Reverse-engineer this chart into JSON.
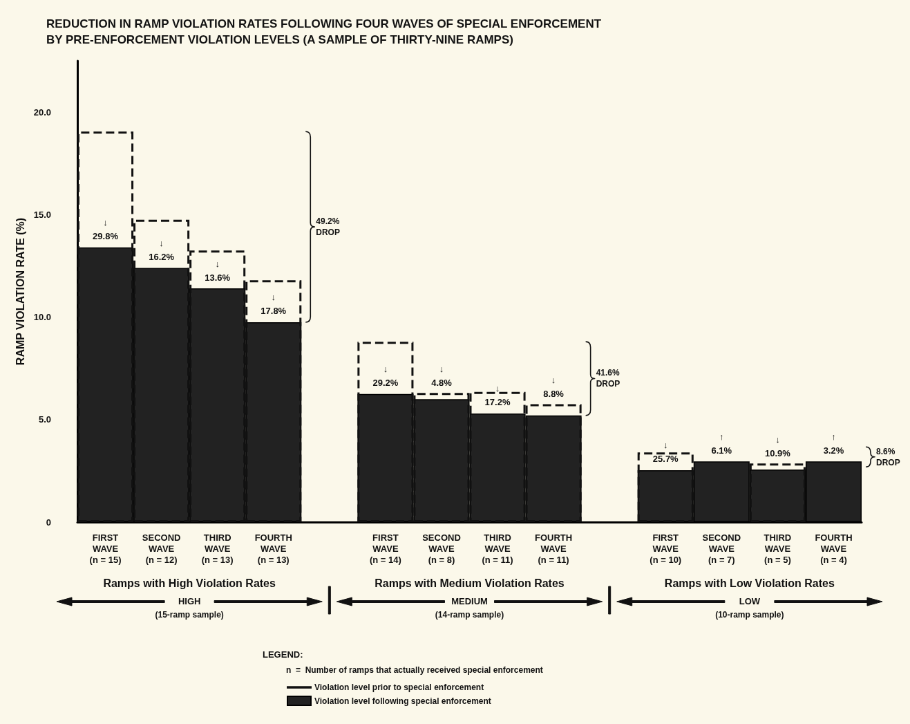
{
  "chart_data": {
    "type": "bar",
    "title": "REDUCTION IN RAMP VIOLATION RATES FOLLOWING FOUR WAVES OF SPECIAL ENFORCEMENT\nBY PRE-ENFORCEMENT VIOLATION LEVELS (A SAMPLE OF THIRTY-NINE RAMPS)",
    "ylabel": "RAMP VIOLATION RATE (%)",
    "legend_title": "LEGEND:",
    "categories": [
      "FIRST\nWAVE\n(n = 15)",
      "SECOND\nWAVE\n(n = 12)",
      "THIRD\nWAVE\n(n = 13)",
      "FOURTH\nWAVE\n(n = 13)",
      null,
      "FIRST\nWAVE\n(n = 14)",
      "SECOND\nWAVE\n(n = 8)",
      "THIRD\nWAVE\n(n = 11)",
      "FOURTH\nWAVE\n(n = 11)",
      null,
      "FIRST\nWAVE\n(n = 10)",
      "SECOND\nWAVE\n(n = 7)",
      "THIRD\nWAVE\n(n = 5)",
      "FOURTH\nWAVE\n(n = 4)"
    ],
    "series": [
      {
        "name": "Violation level following special enforcement",
        "color": "#222222",
        "values": [
          13.4,
          12.4,
          11.4,
          9.75,
          null,
          6.25,
          6.0,
          5.3,
          5.2,
          null,
          2.53,
          2.96,
          2.56,
          2.96
        ]
      },
      {
        "name": "Violation level prior to special enforcement",
        "color": "#111111",
        "line_style": "dashed",
        "values": [
          19.05,
          14.75,
          13.25,
          11.8,
          null,
          8.8,
          6.3,
          6.35,
          5.75,
          null,
          3.4,
          null,
          2.86,
          null
        ]
      }
    ],
    "ylim": [
      0,
      22.5
    ],
    "yticks": [
      0,
      {
        "value": 5,
        "label": "5.0"
      },
      {
        "value": 10,
        "label": "10.0"
      },
      {
        "value": 15,
        "label": "15.0"
      },
      {
        "value": 20,
        "label": "20.0"
      }
    ],
    "grid": false,
    "legend": "bottom",
    "annotations": [
      {
        "text": "↓\n29.8%",
        "x": "FIRST\nWAVE\n(n = 15)",
        "y": 13.4
      },
      {
        "text": "↓\n16.2%",
        "x": "SECOND\nWAVE\n(n = 12)",
        "y": 12.4
      },
      {
        "text": "↓\n13.6%",
        "x": "THIRD\nWAVE\n(n = 13)",
        "y": 11.4
      },
      {
        "text": "↓\n17.8%",
        "x": "FOURTH\nWAVE\n(n = 13)",
        "y": 9.75
      },
      {
        "text": "↓\n29.2%",
        "x": "FIRST\nWAVE\n(n = 14)",
        "y": 6.25
      },
      {
        "text": "↓\n4.8%",
        "x": "SECOND\nWAVE\n(n = 8)",
        "y": 6.0
      },
      {
        "text": "↓\n17.2%",
        "x": "THIRD\nWAVE\n(n = 11)",
        "y": 5.3
      },
      {
        "text": "↓\n8.8%",
        "x": "FOURTH\nWAVE\n(n = 11)",
        "y": 5.2
      },
      {
        "text": "↓\n25.7%",
        "x": "FIRST\nWAVE\n(n = 10)",
        "y": 2.53
      },
      {
        "text": "↑\n6.1%",
        "x": "SECOND\nWAVE\n(n = 7)",
        "y": 2.96
      },
      {
        "text": "↓\n10.9%",
        "x": "THIRD\nWAVE\n(n = 5)",
        "y": 2.56
      },
      {
        "text": "↑\n3.2%",
        "x": "FOURTH\nWAVE\n(n = 4)",
        "y": 2.96
      },
      "49.2%\nDROP",
      "41.6%\nDROP",
      "8.6%\nDROP",
      "Ramps with High Violation Rates",
      "HIGH",
      "(15-ramp sample)",
      "Ramps with Medium Violation Rates",
      "MEDIUM",
      "(14-ramp sample)",
      "Ramps with Low Violation Rates",
      "LOW",
      "(10-ramp sample)",
      "n  =  Number of ramps that actually received special enforcement"
    ]
  }
}
